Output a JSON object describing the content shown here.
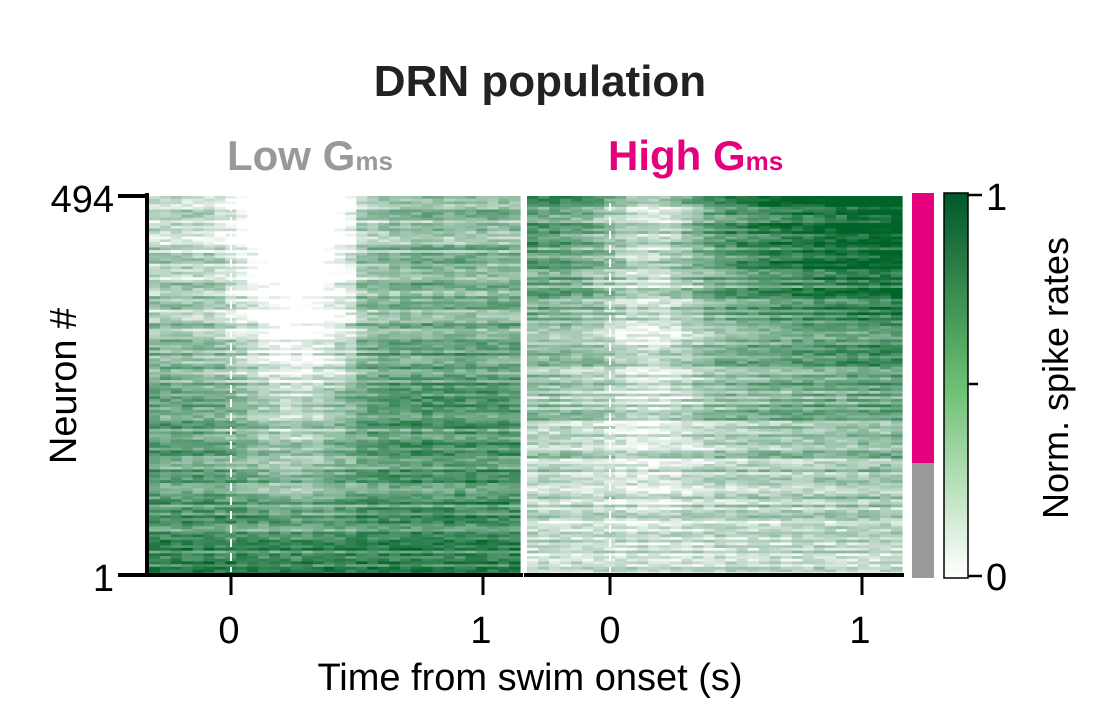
{
  "chart_data": {
    "type": "heatmap",
    "title": "DRN population",
    "panels": [
      {
        "name": "Low",
        "label": "Low G",
        "label_subscript": "ms",
        "label_color": "#999999",
        "x_ticks": [
          "0",
          "1"
        ],
        "x_tick_values": [
          0,
          1
        ],
        "xlim": [
          -0.33,
          1.15
        ],
        "marker_x": 0,
        "pattern": "low activity just after swim onset (≈0–0.4 s), rising later; high activity in bottom rows"
      },
      {
        "name": "High",
        "label": "High G",
        "label_subscript": "ms",
        "label_color": "#e5007e",
        "x_ticks": [
          "0",
          "1"
        ],
        "x_tick_values": [
          0,
          1
        ],
        "xlim": [
          -0.33,
          1.15
        ],
        "marker_x": 0,
        "pattern": "high activity before onset and rising later in top rows; lower activity in bottom rows"
      }
    ],
    "xlabel": "Time from swim onset (s)",
    "ylabel": "Neuron #",
    "y_ticks": [
      "1",
      "494"
    ],
    "ylim": [
      1,
      494
    ],
    "n_neurons": 494,
    "group_bar": {
      "groups": [
        {
          "color": "#e5007e",
          "from": 494,
          "to": 190
        },
        {
          "color": "#999999",
          "from": 190,
          "to": 1
        }
      ]
    },
    "colorbar": {
      "label": "Norm. spike rates",
      "ticks": [
        "0",
        "1"
      ],
      "tick_values": [
        0,
        1
      ],
      "range": [
        0,
        1
      ],
      "colors": [
        "#ffffff",
        "#006428"
      ]
    }
  }
}
